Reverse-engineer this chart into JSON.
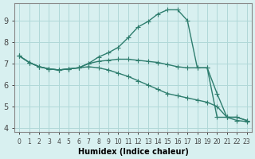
{
  "xlabel": "Humidex (Indice chaleur)",
  "ylabel": "",
  "background_color": "#d8f0f0",
  "line_color": "#2e7d6e",
  "grid_color": "#b0d8d8",
  "xlim": [
    -0.5,
    23.5
  ],
  "ylim": [
    3.8,
    9.8
  ],
  "yticks": [
    4,
    5,
    6,
    7,
    8,
    9
  ],
  "xticks": [
    0,
    1,
    2,
    3,
    4,
    5,
    6,
    7,
    8,
    9,
    10,
    11,
    12,
    13,
    14,
    15,
    16,
    17,
    18,
    19,
    20,
    21,
    22,
    23
  ],
  "line1_x": [
    0,
    1,
    2,
    3,
    4,
    5,
    6,
    7,
    8,
    9,
    10,
    11,
    12,
    13,
    14,
    15,
    16,
    17,
    18,
    19,
    20,
    21,
    22,
    23
  ],
  "line1_y": [
    7.35,
    7.05,
    6.85,
    6.75,
    6.7,
    6.75,
    6.8,
    7.0,
    7.3,
    7.5,
    7.75,
    8.2,
    8.7,
    8.95,
    9.3,
    9.5,
    9.5,
    9.0,
    6.8,
    6.8,
    4.5,
    4.5,
    4.35,
    4.3
  ],
  "line2_x": [
    0,
    1,
    2,
    3,
    4,
    5,
    6,
    7,
    8,
    9,
    10,
    11,
    12,
    13,
    14,
    15,
    16,
    17,
    18,
    19,
    20,
    21,
    22,
    23
  ],
  "line2_y": [
    7.35,
    7.05,
    6.85,
    6.75,
    6.7,
    6.75,
    6.8,
    7.0,
    7.1,
    7.15,
    7.2,
    7.2,
    7.15,
    7.1,
    7.05,
    6.95,
    6.85,
    6.8,
    6.8,
    6.8,
    5.6,
    4.5,
    4.5,
    4.35
  ],
  "line3_x": [
    0,
    1,
    2,
    3,
    4,
    5,
    6,
    7,
    8,
    9,
    10,
    11,
    12,
    13,
    14,
    15,
    16,
    17,
    18,
    19,
    20,
    21,
    22,
    23
  ],
  "line3_y": [
    7.35,
    7.05,
    6.85,
    6.75,
    6.7,
    6.75,
    6.8,
    6.85,
    6.8,
    6.7,
    6.55,
    6.4,
    6.2,
    6.0,
    5.8,
    5.6,
    5.5,
    5.4,
    5.3,
    5.2,
    5.0,
    4.5,
    4.5,
    4.35
  ],
  "marker_size": 4
}
